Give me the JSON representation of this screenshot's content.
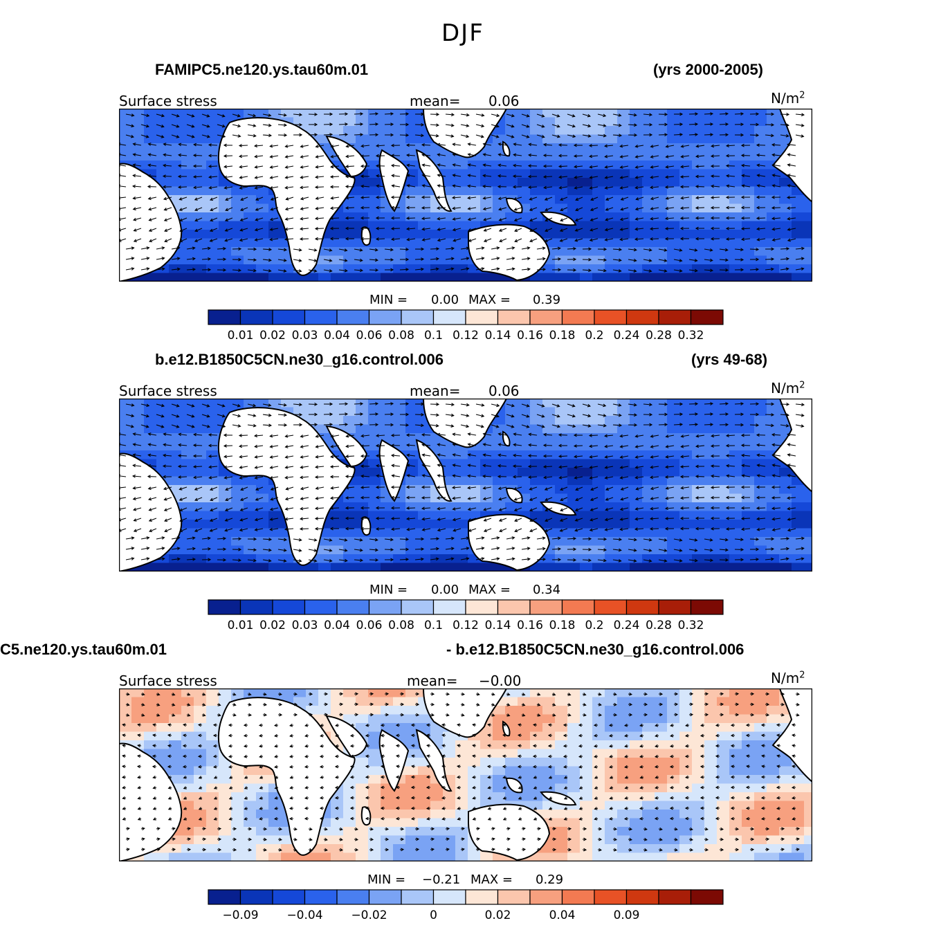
{
  "title": "DJF",
  "panels": [
    {
      "case_left": "FAMIPC5.ne120.ys.tau60m.01",
      "case_right": "(yrs 2000-2005)",
      "variable": "Surface stress",
      "mean_label": "mean=",
      "mean_value": "0.06",
      "units": "N/m",
      "units_sup": "2",
      "min_label": "MIN =",
      "min_value": "0.00",
      "max_label": "MAX =",
      "max_value": "0.39",
      "colorbar_ticks": [
        "0.01",
        "0.02",
        "0.03",
        "0.04",
        "0.06",
        "0.08",
        "0.1",
        "0.12",
        "0.14",
        "0.16",
        "0.18",
        "0.2",
        "0.24",
        "0.28",
        "0.32"
      ]
    },
    {
      "case_left": "b.e12.B1850C5CN.ne30_g16.control.006",
      "case_right": "(yrs 49-68)",
      "variable": "Surface stress",
      "mean_label": "mean=",
      "mean_value": "0.06",
      "units": "N/m",
      "units_sup": "2",
      "min_label": "MIN =",
      "min_value": "0.00",
      "max_label": "MAX =",
      "max_value": "0.34",
      "colorbar_ticks": [
        "0.01",
        "0.02",
        "0.03",
        "0.04",
        "0.06",
        "0.08",
        "0.1",
        "0.12",
        "0.14",
        "0.16",
        "0.18",
        "0.2",
        "0.24",
        "0.28",
        "0.32"
      ]
    },
    {
      "case_left": "C5.ne120.ys.tau60m.01",
      "case_right": "- b.e12.B1850C5CN.ne30_g16.control.006",
      "variable": "Surface stress",
      "mean_label": "mean=",
      "mean_value": "−0.00",
      "units": "N/m",
      "units_sup": "2",
      "min_label": "MIN =",
      "min_value": "−0.21",
      "max_label": "MAX =",
      "max_value": "0.29",
      "colorbar_ticks": [
        "−0.09",
        "",
        "−0.04",
        "",
        "−0.02",
        "",
        "0",
        "",
        "0.02",
        "",
        "0.04",
        "",
        "0.09",
        "",
        ""
      ]
    }
  ],
  "colors": {
    "palette": [
      "#08208f",
      "#0a35b8",
      "#1548d8",
      "#2a62ec",
      "#4a7ff0",
      "#7aa3f4",
      "#a9c6f8",
      "#d6e6fb",
      "#fde6d6",
      "#fbc6ad",
      "#f7a07f",
      "#f37a52",
      "#e85226",
      "#cf3810",
      "#a81e08",
      "#7c0a04"
    ],
    "land": "#ffffff",
    "coast": "#000000"
  }
}
